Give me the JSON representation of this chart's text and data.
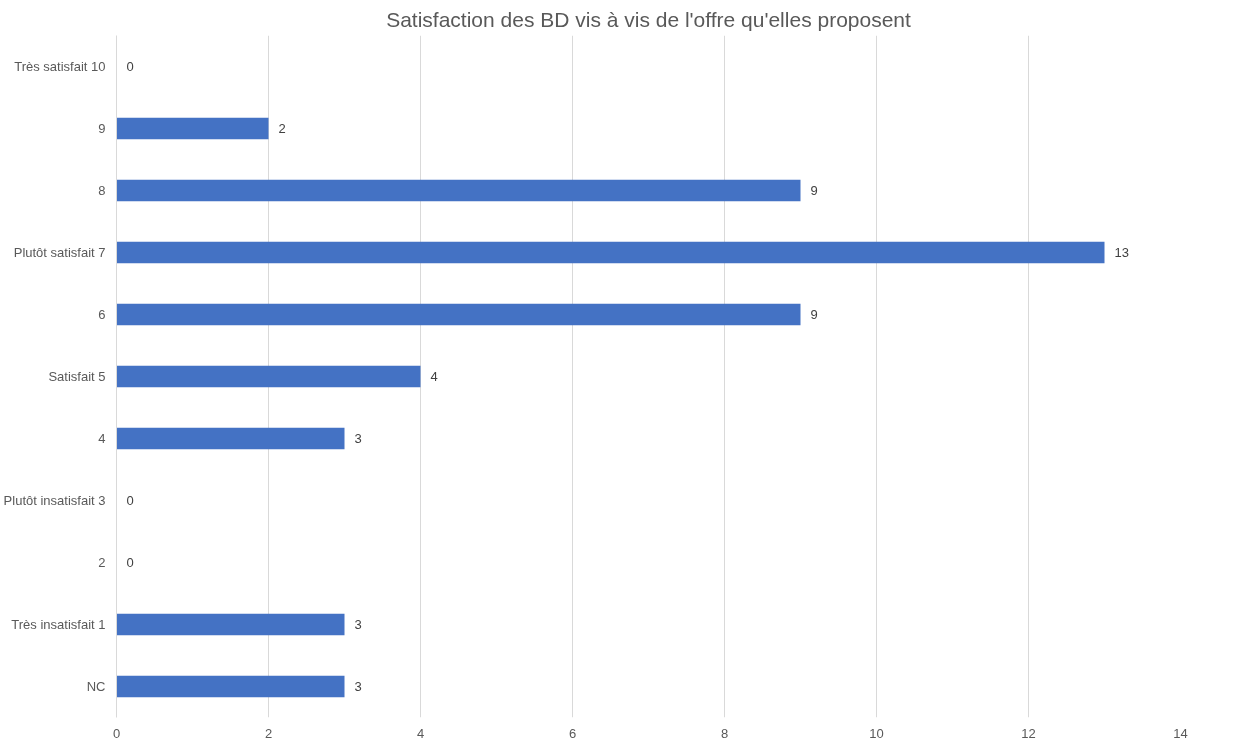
{
  "chart_data": {
    "type": "bar",
    "orientation": "horizontal",
    "title": "Satisfaction des BD vis à vis de l'offre qu'elles proposent",
    "categories": [
      "Très satisfait 10",
      "9",
      "8",
      "Plutôt satisfait 7",
      "6",
      "Satisfait 5",
      "4",
      "Plutôt insatisfait 3",
      "2",
      "Très insatisfait 1",
      "NC"
    ],
    "values": [
      0,
      2,
      9,
      13,
      9,
      4,
      3,
      0,
      0,
      3,
      3
    ],
    "color": "#4472c4",
    "xlim": [
      0,
      14
    ],
    "xticks": [
      0,
      2,
      4,
      6,
      8,
      10,
      12,
      14
    ],
    "grid": "x",
    "data_labels": true
  }
}
